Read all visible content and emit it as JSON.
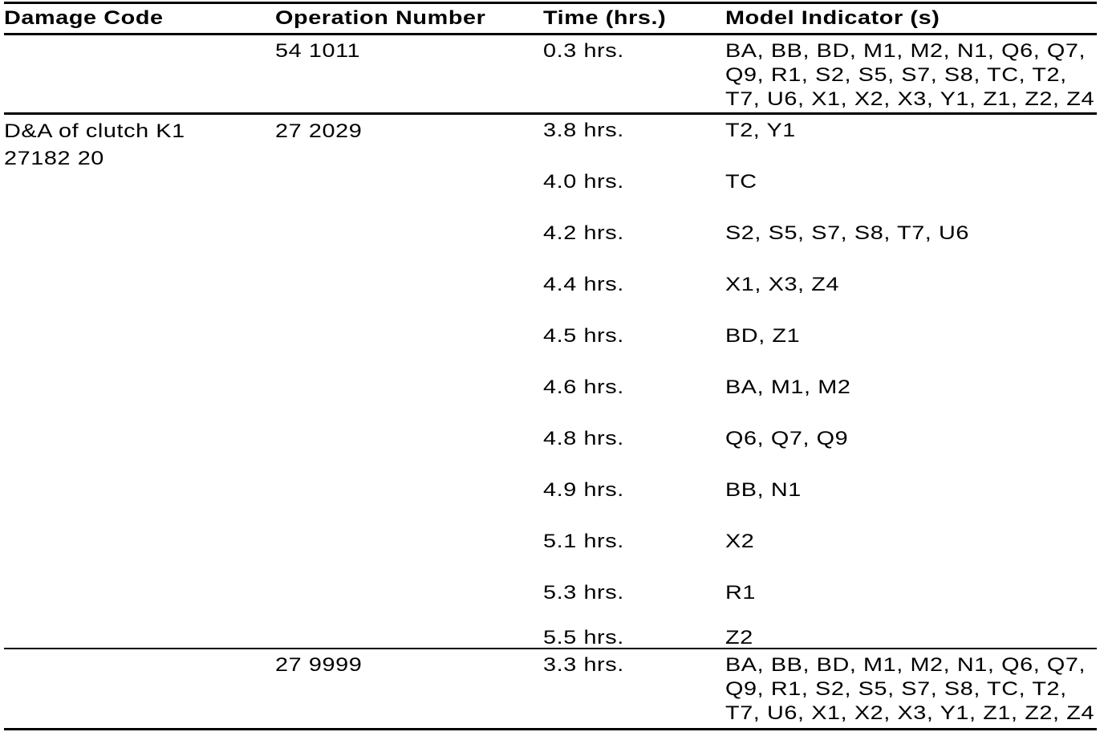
{
  "table": {
    "columns": [
      "Damage Code",
      "Operation Number",
      "Time (hrs.)",
      "Model Indicator (s)"
    ],
    "rows": [
      {
        "damage_code_lines": [],
        "operation_number": "54 1011",
        "entries": [
          {
            "time": "0.3 hrs.",
            "model_lines": [
              "BA, BB, BD, M1, M2, N1, Q6, Q7,",
              "Q9, R1, S2, S5, S7, S8, TC, T2,",
              "T7, U6, X1, X2, X3, Y1, Z1, Z2, Z4"
            ]
          }
        ]
      },
      {
        "damage_code_lines": [
          "D&A of clutch K1",
          "27182 20"
        ],
        "operation_number": "27 2029",
        "entries": [
          {
            "time": "3.8 hrs.",
            "model_lines": [
              "T2, Y1"
            ]
          },
          {
            "time": "4.0 hrs.",
            "model_lines": [
              "TC"
            ]
          },
          {
            "time": "4.2 hrs.",
            "model_lines": [
              "S2, S5, S7, S8, T7, U6"
            ]
          },
          {
            "time": "4.4 hrs.",
            "model_lines": [
              "X1, X3, Z4"
            ]
          },
          {
            "time": "4.5 hrs.",
            "model_lines": [
              "BD, Z1"
            ]
          },
          {
            "time": "4.6 hrs.",
            "model_lines": [
              "BA, M1, M2"
            ]
          },
          {
            "time": "4.8 hrs.",
            "model_lines": [
              "Q6, Q7, Q9"
            ]
          },
          {
            "time": "4.9 hrs.",
            "model_lines": [
              "BB, N1"
            ]
          },
          {
            "time": "5.1 hrs.",
            "model_lines": [
              "X2"
            ]
          },
          {
            "time": "5.3 hrs.",
            "model_lines": [
              "R1"
            ]
          },
          {
            "time": "5.5 hrs.",
            "model_lines": [
              "Z2"
            ]
          }
        ]
      },
      {
        "damage_code_lines": [],
        "operation_number": "27 9999",
        "entries": [
          {
            "time": "3.3 hrs.",
            "model_lines": [
              "BA, BB, BD, M1, M2, N1, Q6, Q7,",
              "Q9, R1, S2, S5, S7, S8, TC, T2,",
              "T7, U6, X1, X2, X3, Y1, Z1, Z2, Z4"
            ]
          }
        ]
      }
    ]
  },
  "colors": {
    "text": "#000000",
    "background": "#ffffff",
    "rule": "#000000"
  }
}
